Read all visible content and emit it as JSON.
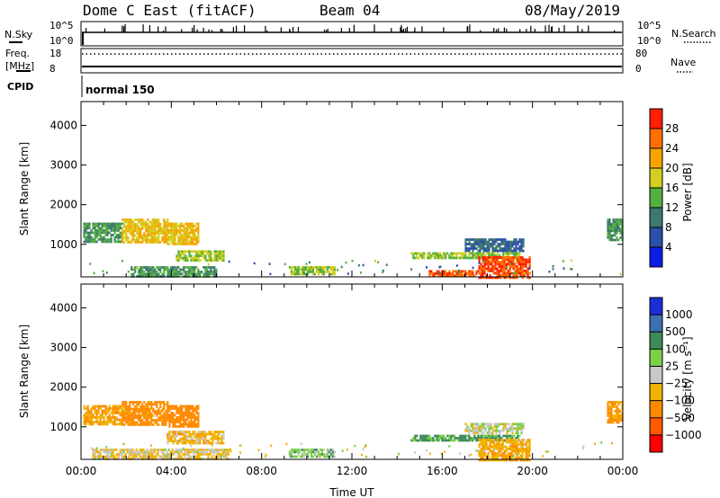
{
  "header": {
    "station": "Dome C East (fitACF)",
    "beam": "Beam 04",
    "date": "08/May/2019"
  },
  "top_panels": {
    "nsky_label": "N.Sky",
    "nsearch_label": "N.Search",
    "freq_label_line1": "Freq.",
    "freq_label_line2": "[MHz]",
    "nave_label": "Nave",
    "cpid_label": "CPID",
    "cpid_value": "normal 150",
    "nsky_tick_top": "10^5",
    "nsky_tick_bottom": "10^0",
    "nsearch_tick_top": "10^5",
    "nsearch_tick_bottom": "10^0",
    "freq_tick_top": "18",
    "freq_tick_bottom": "8",
    "nave_tick_top": "80",
    "nave_tick_bottom": "0"
  },
  "colors": {
    "power_scale": [
      "#0a1ee6",
      "#2a50a8",
      "#3d7a6c",
      "#54b040",
      "#d2cf1f",
      "#f7a400",
      "#ff6e00",
      "#ff1e00"
    ],
    "velocity_scale": [
      "#1a2fd8",
      "#3d6fb4",
      "#3e8a5c",
      "#7bd047",
      "#c8c8c8",
      "#f0b400",
      "#ff8a00",
      "#ff5a00",
      "#ff0000"
    ]
  },
  "chart_data": [
    {
      "type": "heatmap",
      "name": "power",
      "ylabel": "Slant Range [km]",
      "ylim": [
        180,
        4600
      ],
      "xlim": [
        0,
        24
      ],
      "yticks": [
        "1000",
        "2000",
        "3000",
        "4000"
      ],
      "colorbar_label": "Power [dB]",
      "colorbar_ticks": [
        "4",
        "8",
        "12",
        "16",
        "20",
        "24",
        "28"
      ],
      "colorbar_range": [
        0,
        32
      ],
      "patches": [
        {
          "t0": 0.1,
          "t1": 1.8,
          "r0": 1050,
          "r1": 1550,
          "value": 12
        },
        {
          "t0": 1.8,
          "t1": 3.8,
          "r0": 1050,
          "r1": 1650,
          "value": 20
        },
        {
          "t0": 3.8,
          "t1": 5.2,
          "r0": 1000,
          "r1": 1550,
          "value": 20
        },
        {
          "t0": 4.2,
          "t1": 6.3,
          "r0": 600,
          "r1": 850,
          "value": 16
        },
        {
          "t0": 2.2,
          "t1": 6.0,
          "r0": 200,
          "r1": 450,
          "value": 12
        },
        {
          "t0": 9.2,
          "t1": 11.2,
          "r0": 250,
          "r1": 450,
          "value": 16
        },
        {
          "t0": 14.6,
          "t1": 19.4,
          "r0": 650,
          "r1": 800,
          "value": 16
        },
        {
          "t0": 17.0,
          "t1": 19.6,
          "r0": 850,
          "r1": 1150,
          "value": 8
        },
        {
          "t0": 17.6,
          "t1": 19.9,
          "r0": 180,
          "r1": 700,
          "value": 28
        },
        {
          "t0": 15.4,
          "t1": 17.6,
          "r0": 180,
          "r1": 350,
          "value": 28
        },
        {
          "t0": 23.3,
          "t1": 24.0,
          "r0": 1100,
          "r1": 1650,
          "value": 12
        }
      ]
    },
    {
      "type": "heatmap",
      "name": "velocity",
      "ylabel": "Slant Range [km]",
      "xlabel": "Time UT",
      "ylim": [
        180,
        4600
      ],
      "xlim": [
        0,
        24
      ],
      "yticks": [
        "1000",
        "2000",
        "3000",
        "4000"
      ],
      "xticks": [
        "00:00",
        "04:00",
        "08:00",
        "12:00",
        "16:00",
        "20:00",
        "00:00"
      ],
      "colorbar_label": "Velocity [m s⁻¹]",
      "colorbar_ticks": [
        "1000",
        "500",
        "100",
        "25",
        "−25",
        "−100",
        "−500",
        "−1000"
      ],
      "patches": [
        {
          "t0": 0.1,
          "t1": 1.8,
          "r0": 1050,
          "r1": 1550,
          "value": -100
        },
        {
          "t0": 1.8,
          "t1": 3.8,
          "r0": 1050,
          "r1": 1650,
          "value": -150
        },
        {
          "t0": 3.8,
          "t1": 5.2,
          "r0": 1000,
          "r1": 1550,
          "value": -200
        },
        {
          "t0": 3.8,
          "t1": 6.3,
          "r0": 600,
          "r1": 900,
          "value": -60
        },
        {
          "t0": 0.5,
          "t1": 6.5,
          "r0": 180,
          "r1": 450,
          "value": -30
        },
        {
          "t0": 9.2,
          "t1": 11.2,
          "r0": 250,
          "r1": 450,
          "value": 60
        },
        {
          "t0": 14.6,
          "t1": 19.4,
          "r0": 650,
          "r1": 800,
          "value": 120
        },
        {
          "t0": 17.0,
          "t1": 19.6,
          "r0": 850,
          "r1": 1100,
          "value": 10
        },
        {
          "t0": 17.6,
          "t1": 19.9,
          "r0": 180,
          "r1": 700,
          "value": -80
        },
        {
          "t0": 23.3,
          "t1": 24.0,
          "r0": 1100,
          "r1": 1650,
          "value": -120
        }
      ]
    }
  ]
}
